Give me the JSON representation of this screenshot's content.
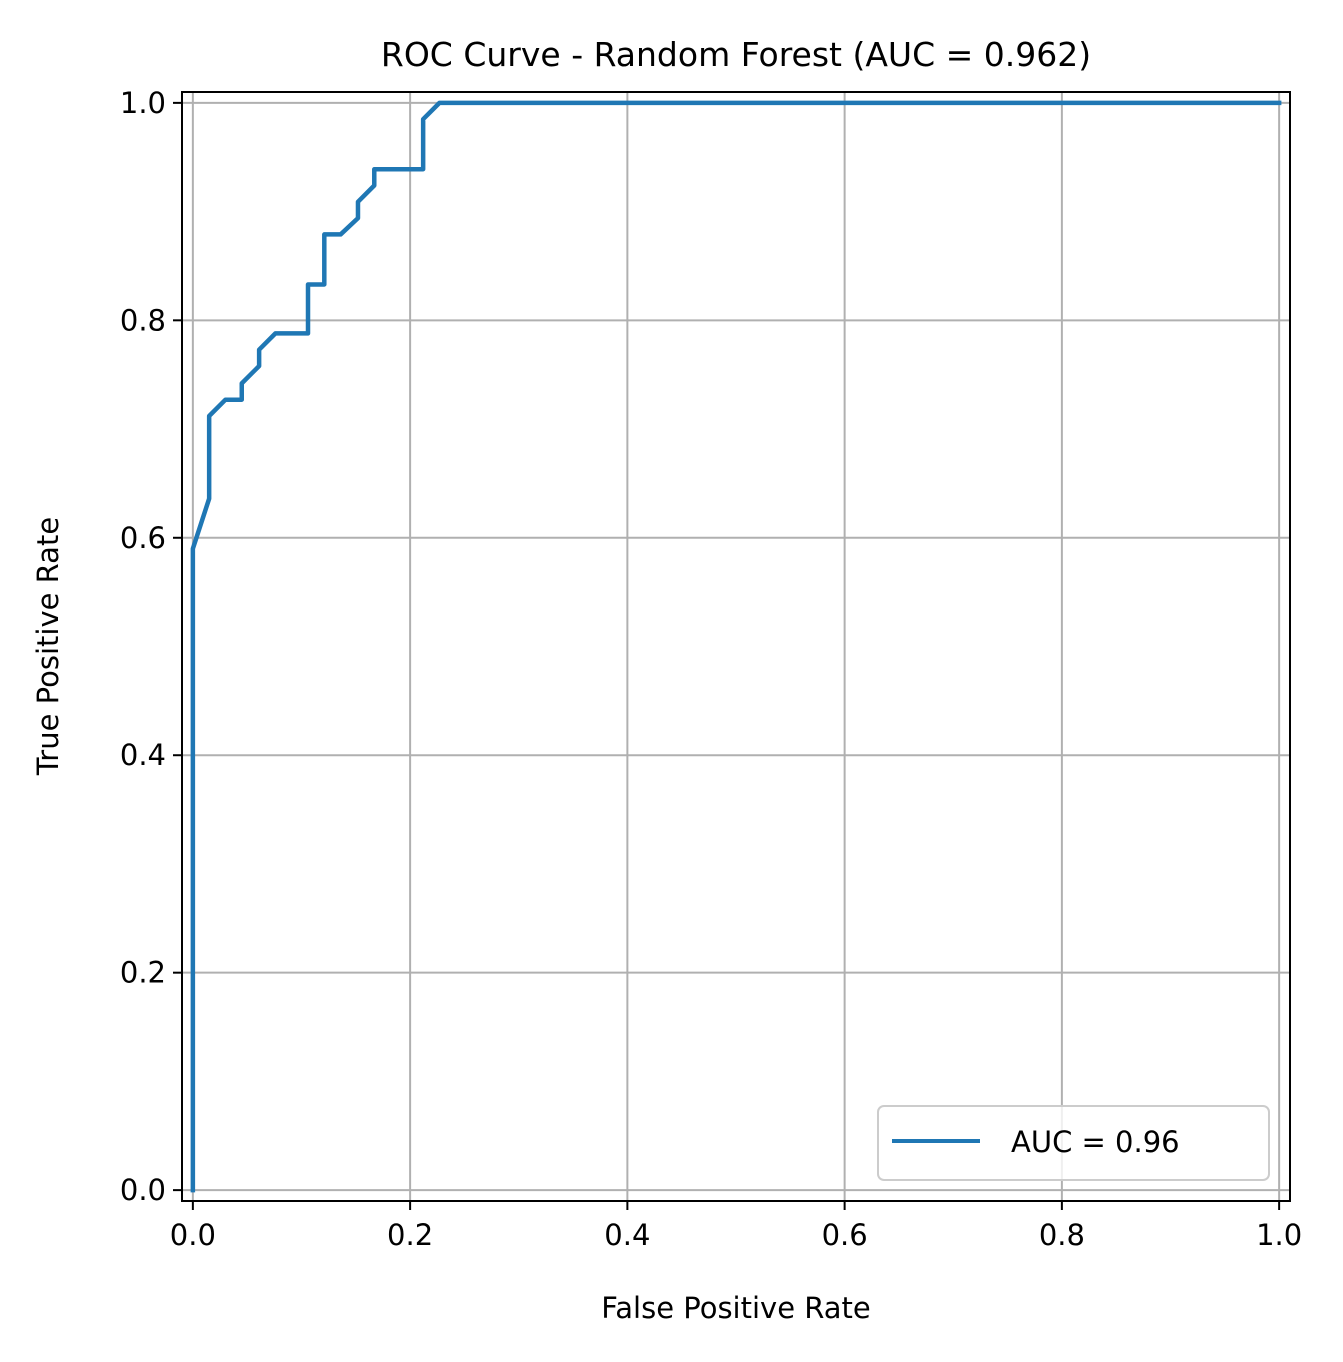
{
  "chart_data": {
    "type": "line",
    "title": "ROC Curve - Random Forest (AUC = 0.962)",
    "xlabel": "False Positive Rate",
    "ylabel": "True Positive Rate",
    "xlim": [
      -0.01,
      1.01
    ],
    "ylim": [
      -0.01,
      1.01
    ],
    "xticks": [
      0.0,
      0.2,
      0.4,
      0.6,
      0.8,
      1.0
    ],
    "yticks": [
      0.0,
      0.2,
      0.4,
      0.6,
      0.8,
      1.0
    ],
    "xtick_labels": [
      "0.0",
      "0.2",
      "0.4",
      "0.6",
      "0.8",
      "1.0"
    ],
    "ytick_labels": [
      "0.0",
      "0.2",
      "0.4",
      "0.6",
      "0.8",
      "1.0"
    ],
    "grid": true,
    "legend_position": "lower-right",
    "series": [
      {
        "name": "AUC = 0.96",
        "color": "#1f77b4",
        "x": [
          0.0,
          0.0,
          0.015,
          0.015,
          0.03,
          0.045,
          0.045,
          0.061,
          0.061,
          0.076,
          0.106,
          0.106,
          0.121,
          0.121,
          0.136,
          0.152,
          0.152,
          0.167,
          0.167,
          0.212,
          0.212,
          0.227,
          1.0
        ],
        "y": [
          0.0,
          0.59,
          0.636,
          0.712,
          0.727,
          0.727,
          0.742,
          0.758,
          0.773,
          0.788,
          0.788,
          0.833,
          0.833,
          0.879,
          0.879,
          0.894,
          0.909,
          0.924,
          0.939,
          0.939,
          0.985,
          1.0,
          1.0
        ]
      }
    ]
  }
}
